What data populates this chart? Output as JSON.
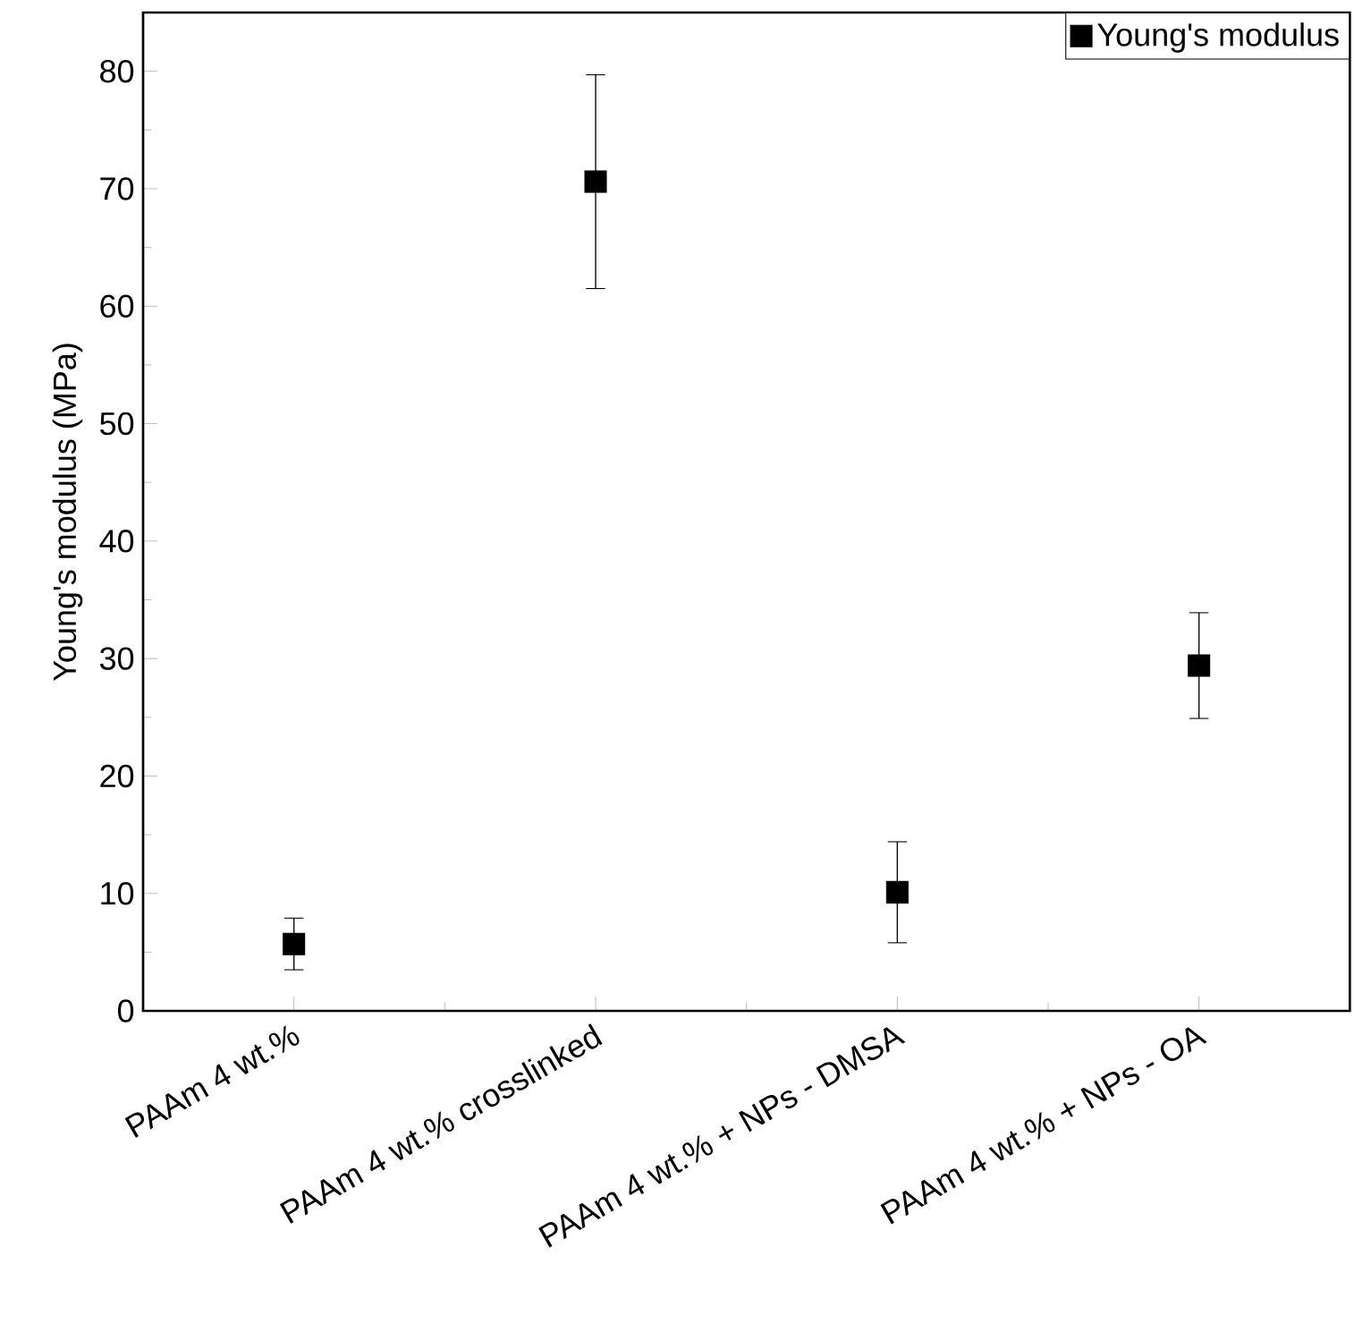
{
  "chart_data": {
    "type": "scatter",
    "ylabel": "Young's modulus (MPa)",
    "categories": [
      "PAAm 4 wt.%",
      "PAAm 4 wt.% crosslinked",
      "PAAm 4 wt.% + NPs - DMSA",
      "PAAm 4 wt.% + NPs - OA"
    ],
    "series": [
      {
        "name": "Young's modulus",
        "color": "#000000",
        "values": [
          5.7,
          70.6,
          10.1,
          29.4
        ],
        "errors": [
          2.2,
          9.1,
          4.3,
          4.5
        ]
      }
    ],
    "ylim": [
      0,
      85
    ],
    "yticks": [
      0,
      10,
      20,
      30,
      40,
      50,
      60,
      70,
      80
    ],
    "marker": "square",
    "legend": "top right",
    "grid": false
  }
}
